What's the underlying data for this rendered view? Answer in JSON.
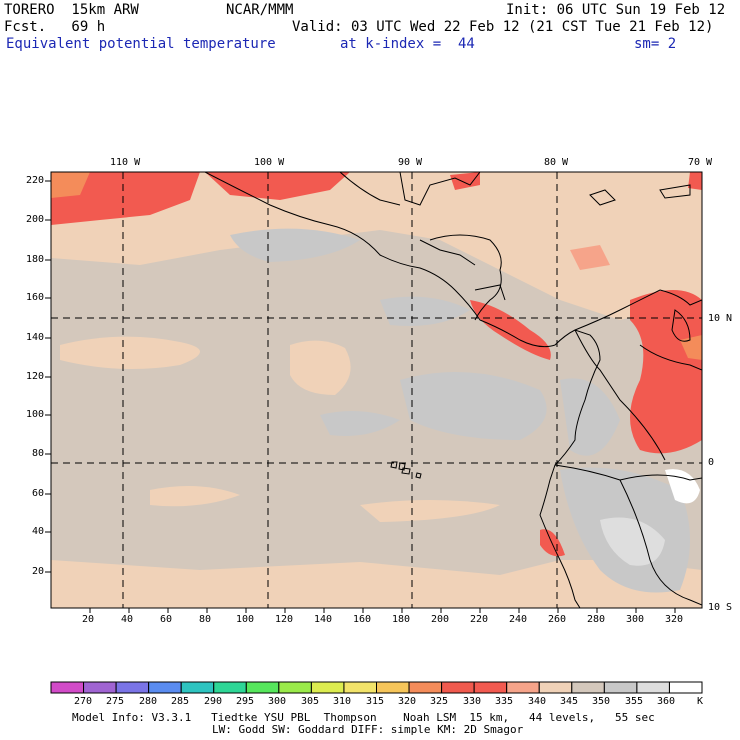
{
  "header": {
    "model": "TORERO  15km ARW",
    "org": "NCAR/MMM",
    "init": "Init: 06 UTC Sun 19 Feb 12",
    "fcst": "Fcst.   69 h",
    "valid": "Valid: 03 UTC Wed 22 Feb 12 (21 CST Tue 21 Feb 12)",
    "field": "Equivalent potential temperature",
    "level": "at k-index =  44",
    "smooth": "sm= 2"
  },
  "map": {
    "lon_labels": [
      "110 W",
      "100 W",
      "90 W",
      "80 W",
      "70 W"
    ],
    "lat_labels": [
      "10 N",
      "0",
      "10 S"
    ],
    "x_ticks": [
      "20",
      "40",
      "60",
      "80",
      "100",
      "120",
      "140",
      "160",
      "180",
      "200",
      "220",
      "240",
      "260",
      "280",
      "300",
      "320"
    ],
    "y_ticks": [
      "220",
      "200",
      "180",
      "160",
      "140",
      "120",
      "100",
      "80",
      "60",
      "40",
      "20"
    ]
  },
  "colorbar": {
    "labels": [
      "270",
      "275",
      "280",
      "285",
      "290",
      "295",
      "300",
      "305",
      "310",
      "315",
      "320",
      "325",
      "330",
      "335",
      "340",
      "345",
      "350",
      "355",
      "360"
    ],
    "unit": "K",
    "colors": [
      "#d24bc8",
      "#a064d2",
      "#7a74e6",
      "#5a8cf0",
      "#2ec4c0",
      "#2ed696",
      "#56e65c",
      "#9aea4a",
      "#dcec50",
      "#f2e36a",
      "#f6c55a",
      "#f48c5a",
      "#f05a4e",
      "#f25a50",
      "#f6a48a",
      "#f0d2b8",
      "#d4c8bc",
      "#c8c8c8",
      "#dedede",
      "#ffffff"
    ]
  },
  "footer": {
    "line1": "Model Info: V3.3.1   Tiedtke YSU PBL  Thompson    Noah LSM  15 km,   44 levels,   55 sec",
    "line2": "LW: Godd SW: Goddard DIFF: simple KM: 2D Smagor"
  }
}
